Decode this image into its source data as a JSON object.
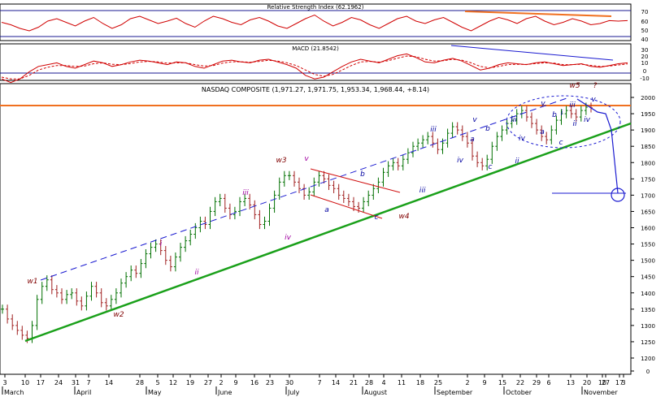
{
  "chart_data": {
    "type": "line",
    "rsi": {
      "title": "Relative Strength Index (62.1962)",
      "ticks": [
        "70",
        "60",
        "50",
        "40"
      ],
      "values": [
        0.55,
        0.45,
        0.3,
        0.2,
        0.35,
        0.6,
        0.7,
        0.55,
        0.4,
        0.6,
        0.75,
        0.5,
        0.3,
        0.45,
        0.7,
        0.8,
        0.65,
        0.5,
        0.6,
        0.72,
        0.5,
        0.35,
        0.6,
        0.8,
        0.7,
        0.55,
        0.45,
        0.65,
        0.75,
        0.6,
        0.4,
        0.3,
        0.5,
        0.7,
        0.85,
        0.6,
        0.4,
        0.55,
        0.75,
        0.65,
        0.45,
        0.3,
        0.5,
        0.7,
        0.8,
        0.6,
        0.5,
        0.65,
        0.75,
        0.55,
        0.35,
        0.2,
        0.4,
        0.6,
        0.75,
        0.65,
        0.5,
        0.7,
        0.8,
        0.6,
        0.45,
        0.55,
        0.7,
        0.6,
        0.45,
        0.5,
        0.62,
        0.6,
        0.62
      ]
    },
    "macd": {
      "title": "MACD (21.8542)",
      "ticks": [
        "30",
        "20",
        "10",
        "0",
        "-10"
      ],
      "macd": [
        -0.6,
        -0.8,
        -0.6,
        -0.2,
        0.1,
        0.2,
        0.3,
        0.1,
        0.0,
        0.2,
        0.4,
        0.3,
        0.1,
        0.2,
        0.35,
        0.45,
        0.4,
        0.3,
        0.2,
        0.35,
        0.3,
        0.1,
        0.0,
        0.2,
        0.4,
        0.45,
        0.35,
        0.3,
        0.45,
        0.5,
        0.35,
        0.2,
        0.0,
        -0.4,
        -0.6,
        -0.5,
        -0.2,
        0.1,
        0.35,
        0.5,
        0.4,
        0.3,
        0.5,
        0.7,
        0.8,
        0.6,
        0.35,
        0.3,
        0.45,
        0.55,
        0.4,
        0.15,
        -0.1,
        0.0,
        0.2,
        0.3,
        0.25,
        0.2,
        0.3,
        0.35,
        0.25,
        0.15,
        0.2,
        0.25,
        0.1,
        0.05,
        0.15,
        0.25,
        0.3
      ],
      "signal": [
        -0.5,
        -0.6,
        -0.6,
        -0.4,
        -0.1,
        0.05,
        0.15,
        0.15,
        0.1,
        0.12,
        0.25,
        0.3,
        0.22,
        0.2,
        0.26,
        0.35,
        0.38,
        0.35,
        0.28,
        0.3,
        0.3,
        0.2,
        0.12,
        0.15,
        0.28,
        0.36,
        0.36,
        0.33,
        0.38,
        0.44,
        0.4,
        0.3,
        0.15,
        -0.1,
        -0.35,
        -0.45,
        -0.35,
        -0.1,
        0.15,
        0.35,
        0.38,
        0.34,
        0.42,
        0.56,
        0.68,
        0.64,
        0.5,
        0.4,
        0.42,
        0.5,
        0.45,
        0.3,
        0.1,
        0.02,
        0.1,
        0.2,
        0.22,
        0.21,
        0.26,
        0.3,
        0.28,
        0.2,
        0.2,
        0.22,
        0.16,
        0.1,
        0.12,
        0.18,
        0.24
      ]
    },
    "price": {
      "title": "NASDAQ COMPOSITE (1,971.27, 1,971.75, 1,953.34, 1,968.44, +8.14)",
      "ylim": [
        0,
        2000
      ],
      "yticks": [
        2000,
        1950,
        1900,
        1850,
        1800,
        1750,
        1700,
        1650,
        1600,
        1550,
        1500,
        1450,
        1400,
        1350,
        1300,
        1250,
        1200,
        0
      ],
      "ytick_labels": [
        "2000",
        "1950",
        "1900",
        "1850",
        "1800",
        "1750",
        "1700",
        "1650",
        "1600",
        "1550",
        "1500",
        "1450",
        "1400",
        "1350",
        "1300",
        "1250",
        "1200",
        "0"
      ],
      "closes": [
        1350,
        1320,
        1300,
        1285,
        1270,
        1260,
        1300,
        1380,
        1420,
        1440,
        1410,
        1400,
        1380,
        1395,
        1400,
        1375,
        1360,
        1390,
        1420,
        1400,
        1370,
        1360,
        1380,
        1400,
        1430,
        1450,
        1470,
        1460,
        1490,
        1520,
        1540,
        1550,
        1530,
        1500,
        1480,
        1510,
        1540,
        1560,
        1580,
        1600,
        1620,
        1610,
        1650,
        1680,
        1690,
        1660,
        1640,
        1650,
        1680,
        1690,
        1670,
        1640,
        1610,
        1620,
        1660,
        1700,
        1740,
        1760,
        1760,
        1740,
        1720,
        1700,
        1710,
        1740,
        1760,
        1750,
        1730,
        1720,
        1700,
        1690,
        1680,
        1665,
        1660,
        1680,
        1700,
        1720,
        1740,
        1770,
        1790,
        1800,
        1790,
        1810,
        1830,
        1850,
        1860,
        1870,
        1880,
        1860,
        1840,
        1860,
        1890,
        1910,
        1900,
        1880,
        1860,
        1820,
        1800,
        1790,
        1810,
        1850,
        1880,
        1900,
        1920,
        1930,
        1950,
        1960,
        1940,
        1920,
        1900,
        1880,
        1870,
        1900,
        1930,
        1950,
        1960,
        1950,
        1940,
        1960,
        1970,
        1968
      ]
    },
    "x_ticks": [
      "3",
      "10",
      "17",
      "24",
      "31",
      "7",
      "14",
      "28",
      "5",
      "12",
      "19",
      "27",
      "2",
      "9",
      "16",
      "23",
      "30",
      "7",
      "14",
      "21",
      "28",
      "4",
      "11",
      "18",
      "25",
      "2",
      "9",
      "15",
      "22",
      "29",
      "6",
      "13",
      "20",
      "27",
      "3",
      "10",
      "17"
    ],
    "months": [
      "March",
      "April",
      "May",
      "June",
      "July",
      "August",
      "September",
      "October",
      "November"
    ],
    "wave_labels": [
      {
        "text": "w1",
        "color": "#800000"
      },
      {
        "text": "w2",
        "color": "#800000"
      },
      {
        "text": "i",
        "color": "#a000a0"
      },
      {
        "text": "ii",
        "color": "#a000a0"
      },
      {
        "text": "iii",
        "color": "#a000a0"
      },
      {
        "text": "iv",
        "color": "#a000a0"
      },
      {
        "text": "v",
        "color": "#a000a0"
      },
      {
        "text": "w3",
        "color": "#800000"
      },
      {
        "text": "a",
        "color": "#0000a0"
      },
      {
        "text": "b",
        "color": "#0000a0"
      },
      {
        "text": "c",
        "color": "#0000a0"
      },
      {
        "text": "w4",
        "color": "#800000"
      },
      {
        "text": "i",
        "color": "#0000a0"
      },
      {
        "text": "ii",
        "color": "#0000a0"
      },
      {
        "text": "iii",
        "color": "#0000a0"
      },
      {
        "text": "iv",
        "color": "#0000a0"
      },
      {
        "text": "v",
        "color": "#0000a0"
      },
      {
        "text": "a",
        "color": "#0000a0"
      },
      {
        "text": "b",
        "color": "#0000a0"
      },
      {
        "text": "c",
        "color": "#0000a0"
      },
      {
        "text": "ii",
        "color": "#0000a0"
      },
      {
        "text": "iii",
        "color": "#0000a0"
      },
      {
        "text": "iv",
        "color": "#0000a0"
      },
      {
        "text": "v",
        "color": "#0000a0"
      },
      {
        "text": "a",
        "color": "#0000a0"
      },
      {
        "text": "b",
        "color": "#0000a0"
      },
      {
        "text": "c",
        "color": "#0000a0"
      },
      {
        "text": "i",
        "color": "#0000a0"
      },
      {
        "text": "ii",
        "color": "#0000a0"
      },
      {
        "text": "iii",
        "color": "#0000a0"
      },
      {
        "text": "iv",
        "color": "#0000a0"
      },
      {
        "text": "v",
        "color": "#0000a0"
      },
      {
        "text": "w5",
        "color": "#800000"
      },
      {
        "text": "?",
        "color": "#800000"
      }
    ],
    "colors": {
      "indicator_line": "#d00000",
      "price_bar": "#007000",
      "trend_support": "#1aa01a",
      "channel_dash": "#1a1ad0",
      "resistance": "#f07020",
      "annotation": "#1a1ad0",
      "counter_channel": "#d01010"
    }
  }
}
